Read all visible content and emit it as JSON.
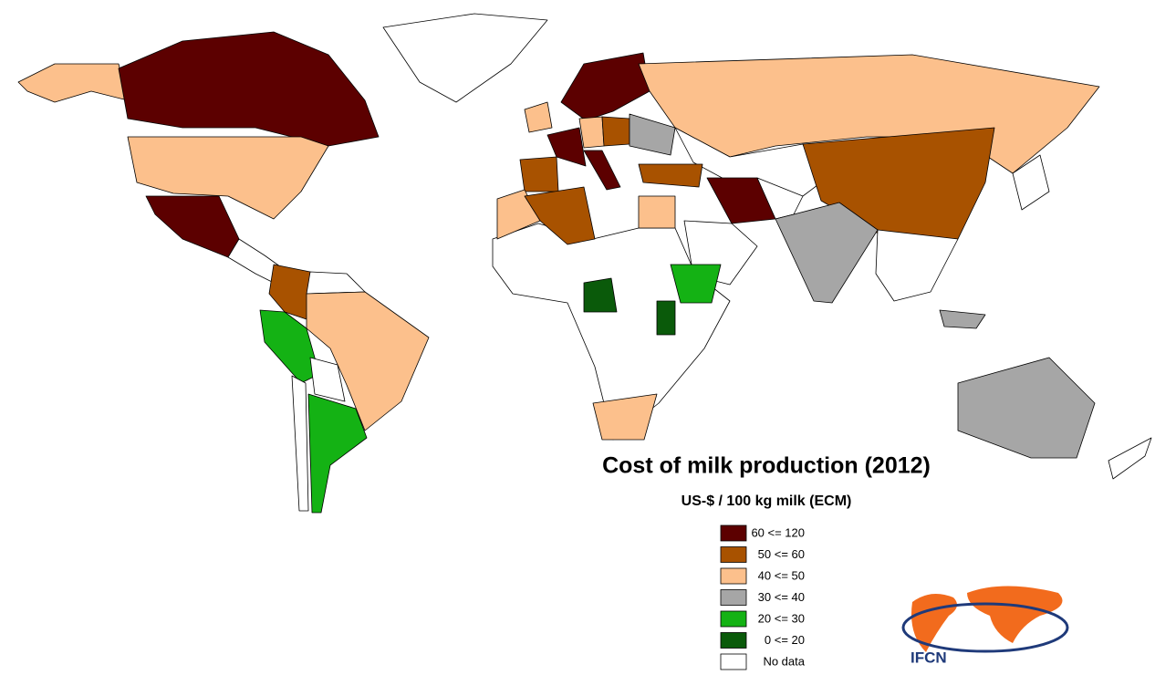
{
  "title": "Cost of milk production (2012)",
  "subtitle": "US-$ / 100 kg milk (ECM)",
  "legend": [
    {
      "label": "60 <= 120",
      "color": "#5c0000"
    },
    {
      "label": "50 <= 60",
      "color": "#a85200"
    },
    {
      "label": "40 <= 50",
      "color": "#fcc08c"
    },
    {
      "label": "30 <= 40",
      "color": "#a6a6a6"
    },
    {
      "label": "20 <= 30",
      "color": "#14b214"
    },
    {
      "label": "0 <= 20",
      "color": "#0a5a0a"
    },
    {
      "label": "No data",
      "color": "#ffffff"
    }
  ],
  "logo": "IFCN"
}
